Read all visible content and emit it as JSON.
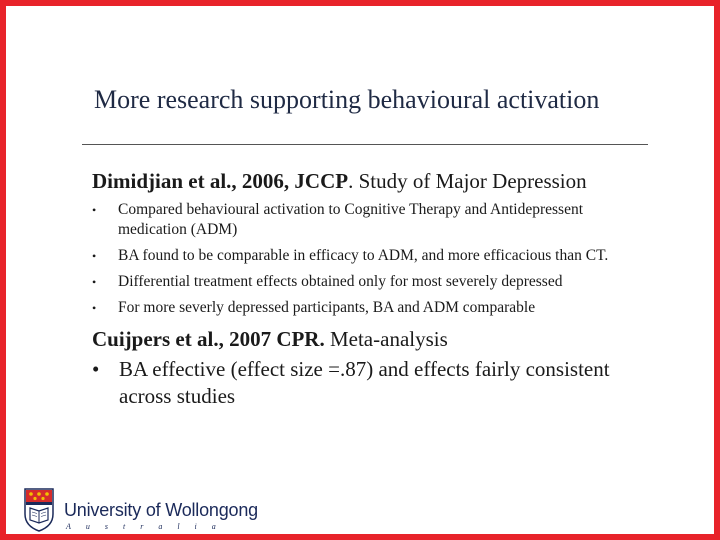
{
  "title": "More research supporting behavioural activation",
  "study1": {
    "citation": "Dimidjian et al., 2006, JCCP",
    "description": ". Study of Major Depression",
    "bullets": [
      "Compared behavioural activation to Cognitive Therapy and Antidepressent medication (ADM)",
      "BA found to be comparable in efficacy to ADM, and more efficacious than CT.",
      "Differential treatment effects obtained only for most severely depressed",
      "For more severly depressed participants, BA and ADM comparable"
    ]
  },
  "study2": {
    "citation": "Cuijpers et al., 2007 CPR.",
    "description": " Meta-analysis",
    "bullets": [
      "BA effective (effect size =.87) and effects fairly consistent across studies"
    ]
  },
  "logo": {
    "name": "University of Wollongong",
    "country": "Australia"
  },
  "colors": {
    "border": "#e8232a",
    "title": "#1f2a44",
    "logo_text": "#1b2a5a"
  }
}
